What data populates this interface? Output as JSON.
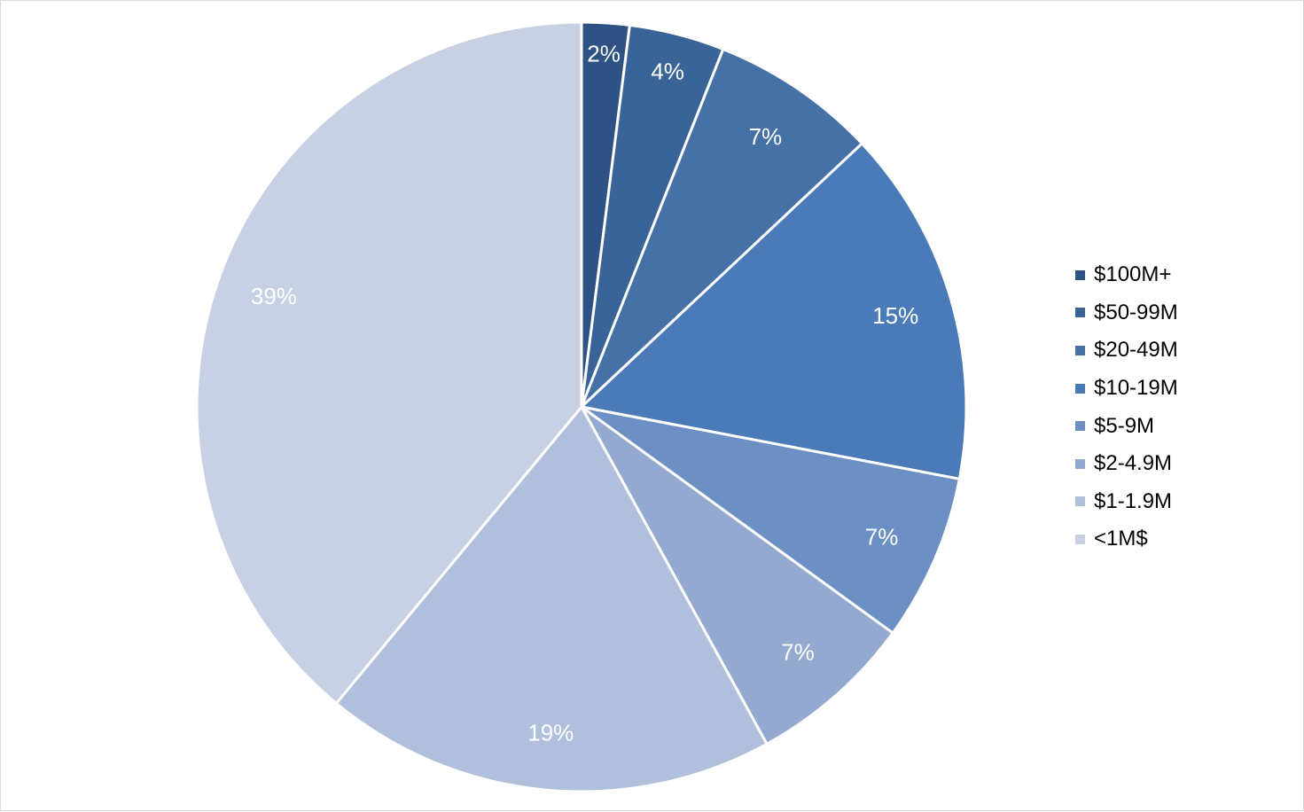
{
  "chart_data": {
    "type": "pie",
    "title": "",
    "categories": [
      "$100M+",
      "$50-99M",
      "$20-49M",
      "$10-19M",
      "$5-9M",
      "$2-4.9M",
      "$1-1.9M",
      "<1M$"
    ],
    "values": [
      2,
      4,
      7,
      15,
      7,
      7,
      19,
      39
    ],
    "labels": [
      "2%",
      "4%",
      "7%",
      "15%",
      "7%",
      "7%",
      "19%",
      "39%"
    ],
    "colors": [
      "#2e5283",
      "#3a6497",
      "#4571a6",
      "#4a7bb8",
      "#6c90c3",
      "#94a9d0",
      "#b0c0dc",
      "#c8d1e3"
    ],
    "legend_position": "right",
    "grid": false
  }
}
